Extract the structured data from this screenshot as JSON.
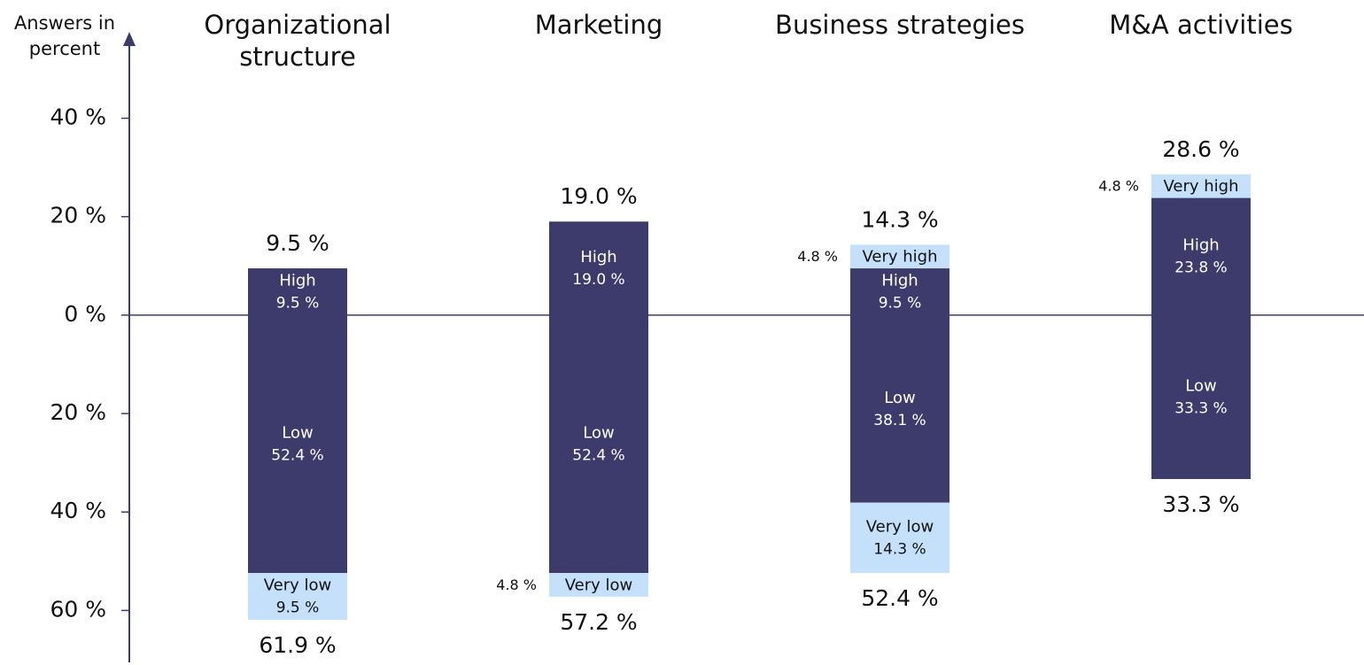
{
  "chart_data": {
    "type": "diverging_stacked_bar",
    "ylabel": "Answers in percent",
    "categories": [
      "Organizational structure",
      "Marketing",
      "Business strategies",
      "M&A activities"
    ],
    "series": [
      {
        "name": "High",
        "color": "#3d3b6b",
        "values": [
          9.5,
          19.0,
          9.5,
          23.8
        ],
        "value_labels": [
          "9.5 %",
          "19.0 %",
          "9.5 %",
          "23.8 %"
        ]
      },
      {
        "name": "Very high",
        "color": "#c5e0fb",
        "values": [
          null,
          null,
          4.8,
          4.8
        ],
        "value_labels": [
          null,
          null,
          "4.8 %",
          "4.8 %"
        ]
      },
      {
        "name": "Low",
        "color": "#3d3b6b",
        "values": [
          -52.4,
          -52.4,
          -38.1,
          -33.3
        ],
        "value_labels": [
          "52.4 %",
          "52.4 %",
          "38.1 %",
          "33.3 %"
        ]
      },
      {
        "name": "Very low",
        "color": "#c5e0fb",
        "values": [
          -9.5,
          -4.8,
          -14.3,
          null
        ],
        "value_labels": [
          "9.5 %",
          "4.8 %",
          "14.3 %",
          null
        ]
      }
    ],
    "top_totals": [
      9.5,
      19.0,
      14.3,
      28.6
    ],
    "top_total_labels": [
      "9.5 %",
      "19.0 %",
      "14.3 %",
      "28.6 %"
    ],
    "bottom_totals": [
      -61.9,
      -57.2,
      -52.4,
      -33.3
    ],
    "bottom_total_labels": [
      "61.9 %",
      "57.2 %",
      "52.4 %",
      "33.3 %"
    ],
    "ylim": [
      -70,
      57
    ],
    "yticks": [
      {
        "value": 40,
        "label": "40 %"
      },
      {
        "value": 20,
        "label": "20 %"
      },
      {
        "value": 0,
        "label": "0 %"
      },
      {
        "value": -20,
        "label": "20 %"
      },
      {
        "value": -40,
        "label": "40 %"
      },
      {
        "value": -60,
        "label": "60 %"
      }
    ]
  }
}
